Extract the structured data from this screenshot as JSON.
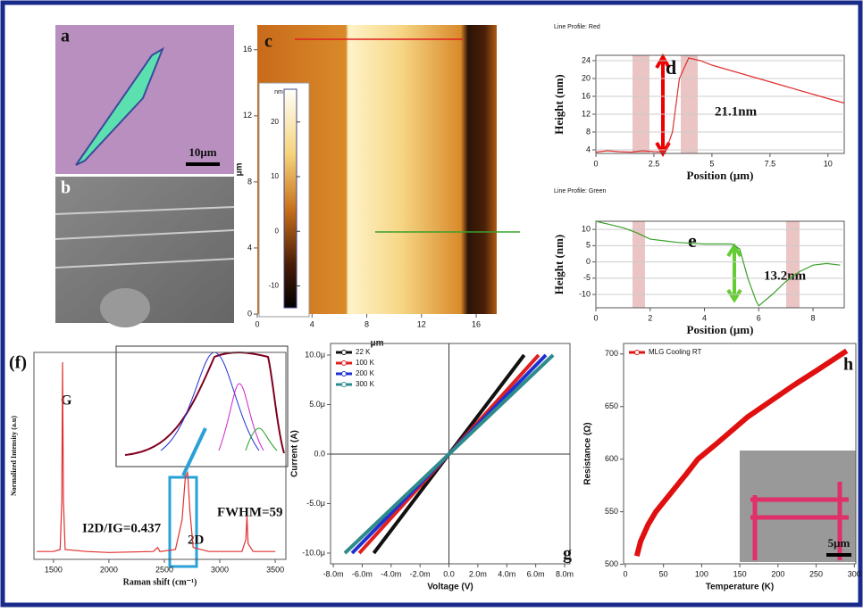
{
  "images": {
    "a": {
      "label": "a",
      "scale_bar": "10μm"
    },
    "b": {
      "label": "b"
    }
  },
  "chart_data": [
    {
      "type": "image",
      "label": "c",
      "xlabel": "μm",
      "ylabel": "μm",
      "xlim": [
        0,
        17.5
      ],
      "ylim": [
        0,
        17.5
      ],
      "xticks": [
        0,
        4,
        8,
        12,
        16
      ],
      "yticks": [
        0,
        4,
        8,
        12,
        16
      ],
      "colorbar_label": "nm",
      "clim": [
        -14,
        26
      ],
      "cticks": [
        -10,
        0,
        10,
        20
      ]
    },
    {
      "type": "line",
      "label": "d",
      "title": "Line Profile: Red",
      "xlabel": "Position (μm)",
      "ylabel": "Height (nm)",
      "xlim": [
        0,
        10.7
      ],
      "ylim": [
        3.2,
        25.2
      ],
      "xticks": [
        0,
        2.5,
        5,
        7.5,
        10
      ],
      "yticks": [
        4,
        8,
        12,
        16,
        20,
        24
      ],
      "grid": true,
      "annotations": [
        "21.1nm"
      ],
      "series": [
        {
          "color": "#e03030",
          "x": [
            0,
            0.5,
            1,
            1.5,
            2,
            2.5,
            3,
            3.3,
            3.6,
            4,
            4.5,
            5,
            6,
            7,
            8,
            9,
            10,
            10.7
          ],
          "values": [
            3.5,
            3.8,
            3.6,
            3.5,
            3.8,
            3.6,
            3.5,
            8,
            20,
            24.6,
            24,
            23,
            21.5,
            20,
            18.5,
            17,
            15.5,
            14.5
          ]
        }
      ]
    },
    {
      "type": "line",
      "label": "e",
      "title": "Line Profile: Green",
      "xlabel": "Position (μm)",
      "ylabel": "Height (nm)",
      "xlim": [
        0,
        9.15
      ],
      "ylim": [
        -14.1,
        12.5
      ],
      "xticks": [
        0,
        2,
        4,
        6,
        8
      ],
      "yticks": [
        -10,
        -5,
        0,
        5,
        10
      ],
      "grid": true,
      "annotations": [
        "13.2nm"
      ],
      "series": [
        {
          "color": "#3aa02a",
          "x": [
            0,
            0.5,
            1,
            1.5,
            2,
            2.5,
            3,
            4,
            5,
            5.3,
            5.6,
            5.9,
            6,
            6.5,
            7,
            7.5,
            8,
            8.5,
            9
          ],
          "values": [
            12.5,
            11.5,
            10.5,
            9,
            7,
            6.5,
            6,
            5.5,
            5.5,
            4,
            -5,
            -12,
            -13.5,
            -10,
            -6,
            -3,
            -1,
            -0.5,
            -1
          ]
        }
      ]
    },
    {
      "type": "line",
      "label": "(f)",
      "xlabel": "Raman shift (cm⁻¹)",
      "ylabel": "Normalized Intensity (a.u)",
      "xlim": [
        1324,
        3596
      ],
      "ylim": [
        0,
        1.05
      ],
      "xticks": [
        1500,
        2000,
        2500,
        3000,
        3500
      ],
      "annotations": [
        "G",
        "2D",
        "I2D/IG=0.437",
        "FWHM=59"
      ],
      "series": [
        {
          "color": "#e03030",
          "x": [
            1350,
            1500,
            1560,
            1575,
            1582,
            1590,
            1605,
            1800,
            2000,
            2400,
            2440,
            2460,
            2600,
            2660,
            2690,
            2710,
            2730,
            2760,
            2900,
            3200,
            3235,
            3245,
            3255,
            3300,
            3500
          ],
          "values": [
            0.04,
            0.04,
            0.05,
            0.3,
            1.0,
            0.3,
            0.05,
            0.04,
            0.035,
            0.04,
            0.06,
            0.04,
            0.05,
            0.2,
            0.42,
            0.44,
            0.25,
            0.06,
            0.04,
            0.04,
            0.1,
            0.22,
            0.08,
            0.04,
            0.04
          ]
        }
      ]
    },
    {
      "type": "line",
      "label": "g",
      "xlabel": "Voltage (V)",
      "ylabel": "Current (A)",
      "xlim": [
        -0.00819,
        0.00837
      ],
      "ylim": [
        -1.108e-05,
        1.117e-05
      ],
      "xticks": [
        {
          "value": -0.008,
          "label": "-8.0m"
        },
        {
          "value": -0.006,
          "label": "-6.0m"
        },
        {
          "value": -0.004,
          "label": "-4.0m"
        },
        {
          "value": -0.002,
          "label": "-2.0m"
        },
        {
          "value": 0,
          "label": "0.0"
        },
        {
          "value": 0.002,
          "label": "2.0m"
        },
        {
          "value": 0.004,
          "label": "4.0m"
        },
        {
          "value": 0.006,
          "label": "6.0m"
        },
        {
          "value": 0.008,
          "label": "8.0m"
        }
      ],
      "yticks": [
        {
          "value": -1e-05,
          "label": "-10.0μ"
        },
        {
          "value": -5e-06,
          "label": "-5.0μ"
        },
        {
          "value": 0,
          "label": "0.0"
        },
        {
          "value": 5e-06,
          "label": "5.0μ"
        },
        {
          "value": 1e-05,
          "label": "10.0μ"
        }
      ],
      "legend": "upper left",
      "series": [
        {
          "name": "22 K",
          "color": "#111111",
          "x": [
            -0.0052,
            0.0052
          ],
          "values": [
            -1e-05,
            1e-05
          ]
        },
        {
          "name": "100 K",
          "color": "#e02020",
          "x": [
            -0.0062,
            0.0062
          ],
          "values": [
            -1e-05,
            1e-05
          ]
        },
        {
          "name": "200 K",
          "color": "#2030d0",
          "x": [
            -0.0067,
            0.0067
          ],
          "values": [
            -1e-05,
            1e-05
          ]
        },
        {
          "name": "300 K",
          "color": "#2e8b8b",
          "x": [
            -0.0072,
            0.0072
          ],
          "values": [
            -1e-05,
            1e-05
          ]
        }
      ]
    },
    {
      "type": "line",
      "label": "h",
      "xlabel": "Temperature (K)",
      "ylabel": "Resistance (Ω)",
      "xlim": [
        -2.3,
        302
      ],
      "ylim": [
        500.5,
        710
      ],
      "xticks": [
        0,
        50,
        100,
        150,
        200,
        250,
        300
      ],
      "yticks": [
        500,
        550,
        600,
        650,
        700
      ],
      "legend": "upper left",
      "inset_scale_bar": "5μm",
      "series": [
        {
          "name": "MLG Cooling RT",
          "color": "#e01010",
          "x": [
            15,
            20,
            30,
            40,
            60,
            80,
            95,
            120,
            160,
            190,
            220,
            250,
            290
          ],
          "values": [
            508,
            522,
            538,
            550,
            568,
            586,
            600,
            615,
            640,
            655,
            670,
            684,
            703
          ]
        }
      ]
    }
  ]
}
